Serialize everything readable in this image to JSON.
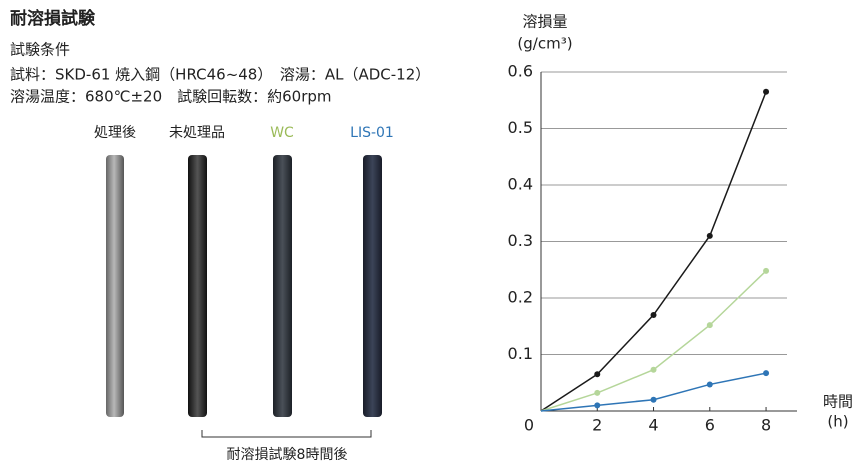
{
  "header": {
    "title": "耐溶損試験",
    "subtitle": "試験条件",
    "conditions": [
      "試料：SKD-61 焼入鋼（HRC46~48）　溶湯：AL（ADC-12）",
      "溶湯温度：680℃±20　試験回転数：約60rpm"
    ]
  },
  "samples": [
    {
      "label": "処理後",
      "color": "#222222"
    },
    {
      "label": "未処理品",
      "color": "#222222"
    },
    {
      "label": "WC",
      "color": "#9bbb59"
    },
    {
      "label": "LIS-01",
      "color": "#2e75b6"
    }
  ],
  "caption": "耐溶損試験8時間後",
  "chart_data": {
    "type": "line",
    "y_label": [
      "溶損量",
      "(g/cm³)"
    ],
    "x_label": [
      "時間",
      "(h)"
    ],
    "x": [
      0,
      2,
      4,
      6,
      8
    ],
    "series": [
      {
        "color": "#1a1a1a",
        "values": [
          0,
          0.065,
          0.17,
          0.31,
          0.565
        ]
      },
      {
        "color": "#b5d69a",
        "values": [
          0,
          0.032,
          0.073,
          0.152,
          0.248
        ]
      },
      {
        "color": "#2e75b6",
        "values": [
          0,
          0.01,
          0.02,
          0.047,
          0.067
        ]
      }
    ],
    "xlim": [
      0,
      9.1
    ],
    "ylim": [
      0,
      0.6
    ],
    "xticks": [
      0,
      2,
      4,
      6,
      8
    ],
    "yticks": [
      0.1,
      0.2,
      0.3,
      0.4,
      0.5,
      0.6
    ],
    "grid": true
  }
}
